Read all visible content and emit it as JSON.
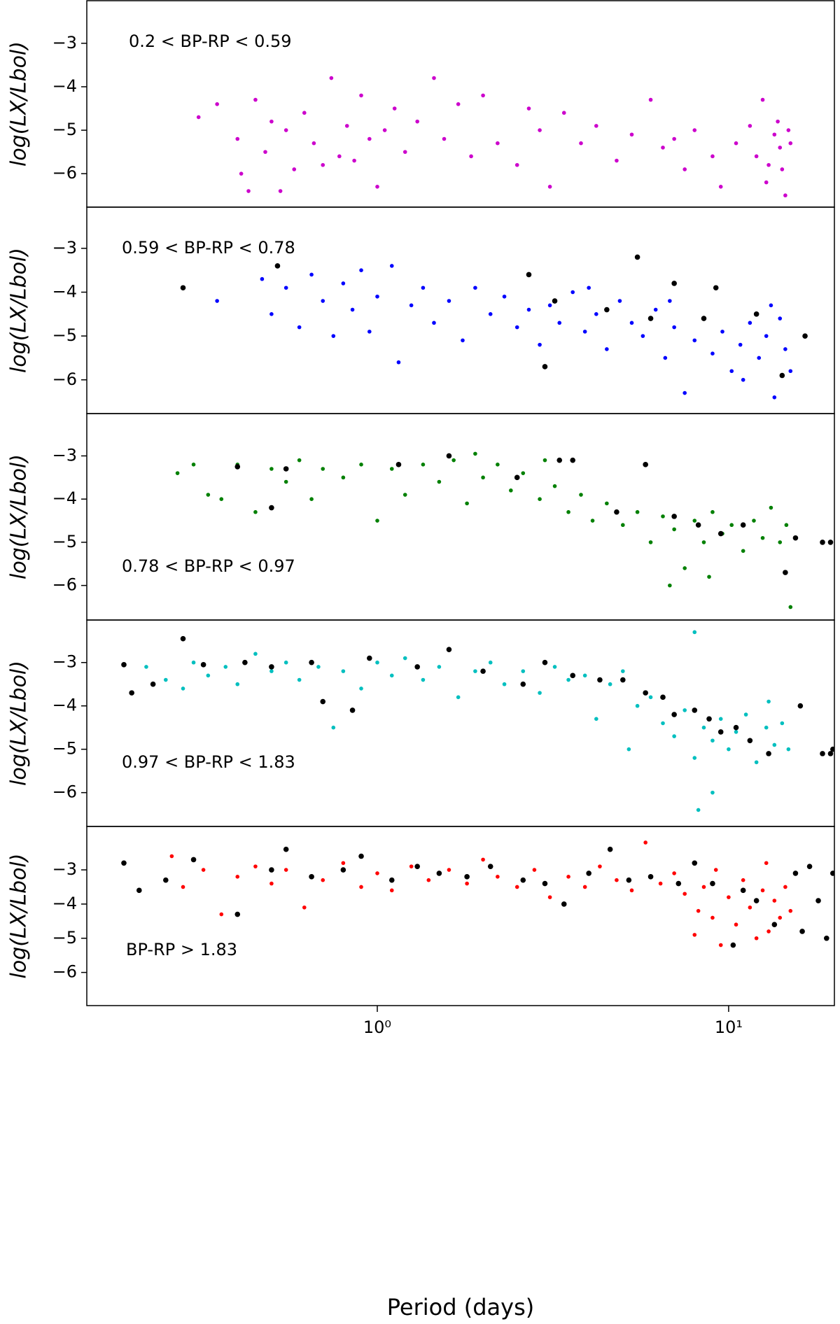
{
  "chart_data": [
    {
      "type": "scatter",
      "annotation": "0.2 < BP-RP < 0.59",
      "ylabel": "log(LX/Lbol)",
      "xlim": [
        0.149,
        20
      ],
      "ylim": [
        -6.77,
        -2.02
      ],
      "log_x": true,
      "yticks": [
        {
          "value": -6,
          "label": "−6"
        },
        {
          "value": -5,
          "label": "−5"
        },
        {
          "value": -4,
          "label": "−4"
        },
        {
          "value": -3,
          "label": "−3"
        }
      ],
      "series": [
        {
          "color": "#cc00cc",
          "x": [
            0.31,
            0.35,
            0.4,
            0.41,
            0.43,
            0.45,
            0.48,
            0.5,
            0.53,
            0.55,
            0.58,
            0.62,
            0.66,
            0.7,
            0.74,
            0.78,
            0.82,
            0.86,
            0.9,
            0.95,
            1.0,
            1.05,
            1.12,
            1.2,
            1.3,
            1.45,
            1.55,
            1.7,
            1.85,
            2.0,
            2.2,
            2.5,
            2.7,
            2.9,
            3.1,
            3.4,
            3.8,
            4.2,
            4.8,
            5.3,
            6.0,
            6.5,
            7.0,
            7.5,
            8.0,
            9.0,
            9.5,
            10.5,
            11.5,
            12.0,
            12.5,
            13.0,
            13.5,
            14.0,
            14.5,
            14.8,
            13.8,
            12.8,
            14.2,
            15.0
          ],
          "y": [
            -4.7,
            -4.4,
            -5.2,
            -6.0,
            -6.4,
            -4.3,
            -5.5,
            -4.8,
            -6.4,
            -5.0,
            -5.9,
            -4.6,
            -5.3,
            -5.8,
            -3.8,
            -5.6,
            -4.9,
            -5.7,
            -4.2,
            -5.2,
            -6.3,
            -5.0,
            -4.5,
            -5.5,
            -4.8,
            -3.8,
            -5.2,
            -4.4,
            -5.6,
            -4.2,
            -5.3,
            -5.8,
            -4.5,
            -5.0,
            -6.3,
            -4.6,
            -5.3,
            -4.9,
            -5.7,
            -5.1,
            -4.3,
            -5.4,
            -5.2,
            -5.9,
            -5.0,
            -5.6,
            -6.3,
            -5.3,
            -4.9,
            -5.6,
            -4.3,
            -5.8,
            -5.1,
            -5.4,
            -6.5,
            -5.0,
            -4.8,
            -6.2,
            -5.9,
            -5.3
          ]
        }
      ]
    },
    {
      "type": "scatter",
      "annotation": "0.59 < BP-RP < 0.78",
      "ylabel": "log(LX/Lbol)",
      "xlim": [
        0.149,
        20
      ],
      "ylim": [
        -6.77,
        -2.06
      ],
      "log_x": true,
      "yticks": [
        {
          "value": -6,
          "label": "−6"
        },
        {
          "value": -5,
          "label": "−5"
        },
        {
          "value": -4,
          "label": "−4"
        },
        {
          "value": -3,
          "label": "−3"
        }
      ],
      "series": [
        {
          "color": "#0000ff",
          "x": [
            0.35,
            0.47,
            0.5,
            0.55,
            0.6,
            0.65,
            0.7,
            0.75,
            0.8,
            0.85,
            0.9,
            0.95,
            1.0,
            1.1,
            1.15,
            1.25,
            1.35,
            1.45,
            1.6,
            1.75,
            1.9,
            2.1,
            2.3,
            2.5,
            2.7,
            2.9,
            3.1,
            3.3,
            3.6,
            3.9,
            4.2,
            4.5,
            4.9,
            5.3,
            5.7,
            6.2,
            6.6,
            7.0,
            7.5,
            8.0,
            8.5,
            9.0,
            9.6,
            10.2,
            10.8,
            11.5,
            12.2,
            12.8,
            13.5,
            14.0,
            14.5,
            15.0,
            13.2,
            11.0,
            6.8,
            4.0
          ],
          "y": [
            -4.2,
            -3.7,
            -4.5,
            -3.9,
            -4.8,
            -3.6,
            -4.2,
            -5.0,
            -3.8,
            -4.4,
            -3.5,
            -4.9,
            -4.1,
            -3.4,
            -5.6,
            -4.3,
            -3.9,
            -4.7,
            -4.2,
            -5.1,
            -3.9,
            -4.5,
            -4.1,
            -4.8,
            -4.4,
            -5.2,
            -4.3,
            -4.7,
            -4.0,
            -4.9,
            -4.5,
            -5.3,
            -4.2,
            -4.7,
            -5.0,
            -4.4,
            -5.5,
            -4.8,
            -6.3,
            -5.1,
            -4.6,
            -5.4,
            -4.9,
            -5.8,
            -5.2,
            -4.7,
            -5.5,
            -5.0,
            -6.4,
            -4.6,
            -5.3,
            -5.8,
            -4.3,
            -6.0,
            -4.2,
            -3.9
          ]
        },
        {
          "color": "#000000",
          "x": [
            0.28,
            0.52,
            2.7,
            3.2,
            4.5,
            5.5,
            7.0,
            9.2,
            8.5,
            12.0,
            3.0,
            14.2,
            16.5,
            6.0
          ],
          "y": [
            -3.9,
            -3.4,
            -3.6,
            -4.2,
            -4.4,
            -3.2,
            -3.8,
            -3.9,
            -4.6,
            -4.5,
            -5.7,
            -5.9,
            -5.0,
            -4.6
          ]
        }
      ]
    },
    {
      "type": "scatter",
      "annotation": "0.78 < BP-RP < 0.97",
      "ylabel": "log(LX/Lbol)",
      "xlim": [
        0.149,
        20
      ],
      "ylim": [
        -6.8,
        -2.02
      ],
      "log_x": true,
      "yticks": [
        {
          "value": -6,
          "label": "−6"
        },
        {
          "value": -5,
          "label": "−5"
        },
        {
          "value": -4,
          "label": "−4"
        },
        {
          "value": -3,
          "label": "−3"
        }
      ],
      "series": [
        {
          "color": "#008000",
          "x": [
            0.27,
            0.3,
            0.33,
            0.36,
            0.4,
            0.45,
            0.5,
            0.55,
            0.6,
            0.65,
            0.7,
            0.8,
            0.9,
            1.0,
            1.1,
            1.2,
            1.35,
            1.5,
            1.65,
            1.8,
            2.0,
            2.2,
            2.4,
            2.6,
            2.9,
            3.2,
            3.5,
            3.8,
            4.1,
            4.5,
            5.0,
            5.5,
            6.0,
            6.5,
            7.0,
            7.5,
            8.0,
            8.5,
            9.0,
            9.6,
            10.2,
            11.0,
            11.8,
            12.5,
            13.2,
            14.0,
            14.6,
            15.0,
            8.8,
            6.8,
            3.0,
            1.9
          ],
          "y": [
            -3.4,
            -3.2,
            -3.9,
            -4.0,
            -3.2,
            -4.3,
            -3.3,
            -3.6,
            -3.1,
            -4.0,
            -3.3,
            -3.5,
            -3.2,
            -4.5,
            -3.3,
            -3.9,
            -3.2,
            -3.6,
            -3.1,
            -4.1,
            -3.5,
            -3.2,
            -3.8,
            -3.4,
            -4.0,
            -3.7,
            -4.3,
            -3.9,
            -4.5,
            -4.1,
            -4.6,
            -4.3,
            -5.0,
            -4.4,
            -4.7,
            -5.6,
            -4.5,
            -5.0,
            -4.3,
            -4.8,
            -4.6,
            -5.2,
            -4.5,
            -4.9,
            -4.2,
            -5.0,
            -4.6,
            -6.5,
            -5.8,
            -6.0,
            -3.1,
            -2.95
          ]
        },
        {
          "color": "#000000",
          "x": [
            0.4,
            0.5,
            0.55,
            1.15,
            1.6,
            2.5,
            3.3,
            3.6,
            4.8,
            5.8,
            7.0,
            8.2,
            9.5,
            11.0,
            14.5,
            15.5,
            18.5,
            19.5
          ],
          "y": [
            -3.25,
            -4.2,
            -3.3,
            -3.2,
            -3.0,
            -3.5,
            -3.1,
            -3.1,
            -4.3,
            -3.2,
            -4.4,
            -4.6,
            -4.8,
            -4.6,
            -5.7,
            -4.9,
            -5.0,
            -5.0
          ]
        }
      ]
    },
    {
      "type": "scatter",
      "annotation": "0.97 < BP-RP < 1.83",
      "ylabel": "log(LX/Lbol)",
      "xlim": [
        0.149,
        20
      ],
      "ylim": [
        -6.78,
        -2.02
      ],
      "log_x": true,
      "yticks": [
        {
          "value": -6,
          "label": "−6"
        },
        {
          "value": -5,
          "label": "−5"
        },
        {
          "value": -4,
          "label": "−4"
        },
        {
          "value": -3,
          "label": "−3"
        }
      ],
      "series": [
        {
          "color": "#00bfbf",
          "x": [
            0.22,
            0.25,
            0.28,
            0.3,
            0.33,
            0.37,
            0.4,
            0.45,
            0.5,
            0.55,
            0.6,
            0.68,
            0.75,
            0.8,
            0.9,
            1.0,
            1.1,
            1.2,
            1.35,
            1.5,
            1.7,
            1.9,
            2.1,
            2.3,
            2.6,
            2.9,
            3.2,
            3.5,
            3.9,
            4.2,
            4.6,
            5.0,
            5.5,
            6.0,
            6.5,
            7.0,
            7.5,
            8.0,
            8.5,
            9.0,
            9.5,
            10.0,
            10.5,
            11.2,
            12.0,
            12.8,
            13.5,
            14.2,
            14.8,
            8.2,
            8.0,
            5.2,
            9.0,
            13.0
          ],
          "y": [
            -3.1,
            -3.4,
            -3.6,
            -3.0,
            -3.3,
            -3.1,
            -3.5,
            -2.8,
            -3.2,
            -3.0,
            -3.4,
            -3.1,
            -4.5,
            -3.2,
            -3.6,
            -3.0,
            -3.3,
            -2.9,
            -3.4,
            -3.1,
            -3.8,
            -3.2,
            -3.0,
            -3.5,
            -3.2,
            -3.7,
            -3.1,
            -3.4,
            -3.3,
            -4.3,
            -3.5,
            -3.2,
            -4.0,
            -3.8,
            -4.4,
            -4.7,
            -4.1,
            -5.2,
            -4.5,
            -4.8,
            -4.3,
            -5.0,
            -4.6,
            -4.2,
            -5.3,
            -4.5,
            -4.9,
            -4.4,
            -5.0,
            -6.4,
            -2.3,
            -5.0,
            -6.0,
            -3.9
          ]
        },
        {
          "color": "#000000",
          "x": [
            0.19,
            0.2,
            0.23,
            0.28,
            0.32,
            0.42,
            0.5,
            0.65,
            0.7,
            0.85,
            0.95,
            1.3,
            1.6,
            2.0,
            2.6,
            3.0,
            3.6,
            4.3,
            5.0,
            5.8,
            6.5,
            7.0,
            8.0,
            8.8,
            9.5,
            10.5,
            11.5,
            13.0,
            16.0,
            18.5,
            19.5,
            19.8
          ],
          "y": [
            -3.05,
            -3.7,
            -3.5,
            -2.45,
            -3.05,
            -3.0,
            -3.1,
            -3.0,
            -3.9,
            -4.1,
            -2.9,
            -3.1,
            -2.7,
            -3.2,
            -3.5,
            -3.0,
            -3.3,
            -3.4,
            -3.4,
            -3.7,
            -3.8,
            -4.2,
            -4.1,
            -4.3,
            -4.6,
            -4.5,
            -4.8,
            -5.1,
            -4.0,
            -5.1,
            -5.1,
            -5.0
          ]
        }
      ]
    },
    {
      "type": "scatter",
      "annotation": "BP-RP > 1.83",
      "ylabel": "log(LX/Lbol)",
      "xlabel": "Period (days)",
      "xlim": [
        0.149,
        20
      ],
      "ylim": [
        -6.97,
        -1.73
      ],
      "log_x": true,
      "xticks": [
        {
          "value": 1,
          "label": "10⁰"
        },
        {
          "value": 10,
          "label": "10¹"
        }
      ],
      "yticks": [
        {
          "value": -6,
          "label": "−6"
        },
        {
          "value": -5,
          "label": "−5"
        },
        {
          "value": -4,
          "label": "−4"
        },
        {
          "value": -3,
          "label": "−3"
        }
      ],
      "series": [
        {
          "color": "#ff0000",
          "x": [
            0.26,
            0.28,
            0.32,
            0.36,
            0.4,
            0.45,
            0.5,
            0.55,
            0.62,
            0.7,
            0.8,
            0.9,
            1.0,
            1.1,
            1.25,
            1.4,
            1.6,
            1.8,
            2.0,
            2.2,
            2.5,
            2.8,
            3.1,
            3.5,
            3.9,
            4.3,
            4.8,
            5.3,
            5.8,
            6.4,
            7.0,
            7.5,
            8.0,
            8.5,
            9.0,
            9.5,
            10.0,
            10.5,
            11.0,
            11.5,
            12.0,
            12.5,
            13.0,
            13.5,
            14.0,
            14.5,
            15.0,
            8.2,
            9.2,
            12.8
          ],
          "y": [
            -2.6,
            -3.5,
            -3.0,
            -4.3,
            -3.2,
            -2.9,
            -3.4,
            -3.0,
            -4.1,
            -3.3,
            -2.8,
            -3.5,
            -3.1,
            -3.6,
            -2.9,
            -3.3,
            -3.0,
            -3.4,
            -2.7,
            -3.2,
            -3.5,
            -3.0,
            -3.8,
            -3.2,
            -3.5,
            -2.9,
            -3.3,
            -3.6,
            -2.2,
            -3.4,
            -3.1,
            -3.7,
            -4.9,
            -3.5,
            -4.4,
            -5.2,
            -3.8,
            -4.6,
            -3.3,
            -4.1,
            -5.0,
            -3.6,
            -4.8,
            -3.9,
            -4.4,
            -3.5,
            -4.2,
            -4.2,
            -3.0,
            -2.8
          ]
        },
        {
          "color": "#000000",
          "x": [
            0.19,
            0.21,
            0.25,
            0.3,
            0.4,
            0.5,
            0.55,
            0.65,
            0.8,
            0.9,
            1.1,
            1.3,
            1.5,
            1.8,
            2.1,
            2.6,
            3.0,
            3.4,
            4.0,
            4.6,
            5.2,
            6.0,
            7.2,
            8.0,
            9.0,
            10.3,
            11.0,
            12.0,
            13.5,
            15.5,
            16.2,
            17.0,
            18.0,
            19.0,
            19.8
          ],
          "y": [
            -2.8,
            -3.6,
            -3.3,
            -2.7,
            -4.3,
            -3.0,
            -2.4,
            -3.2,
            -3.0,
            -2.6,
            -3.3,
            -2.9,
            -3.1,
            -3.2,
            -2.9,
            -3.3,
            -3.4,
            -4.0,
            -3.1,
            -2.4,
            -3.3,
            -3.2,
            -3.4,
            -2.8,
            -3.4,
            -5.2,
            -3.6,
            -3.9,
            -4.6,
            -3.1,
            -4.8,
            -2.9,
            -3.9,
            -5.0,
            -3.1
          ]
        }
      ]
    }
  ]
}
